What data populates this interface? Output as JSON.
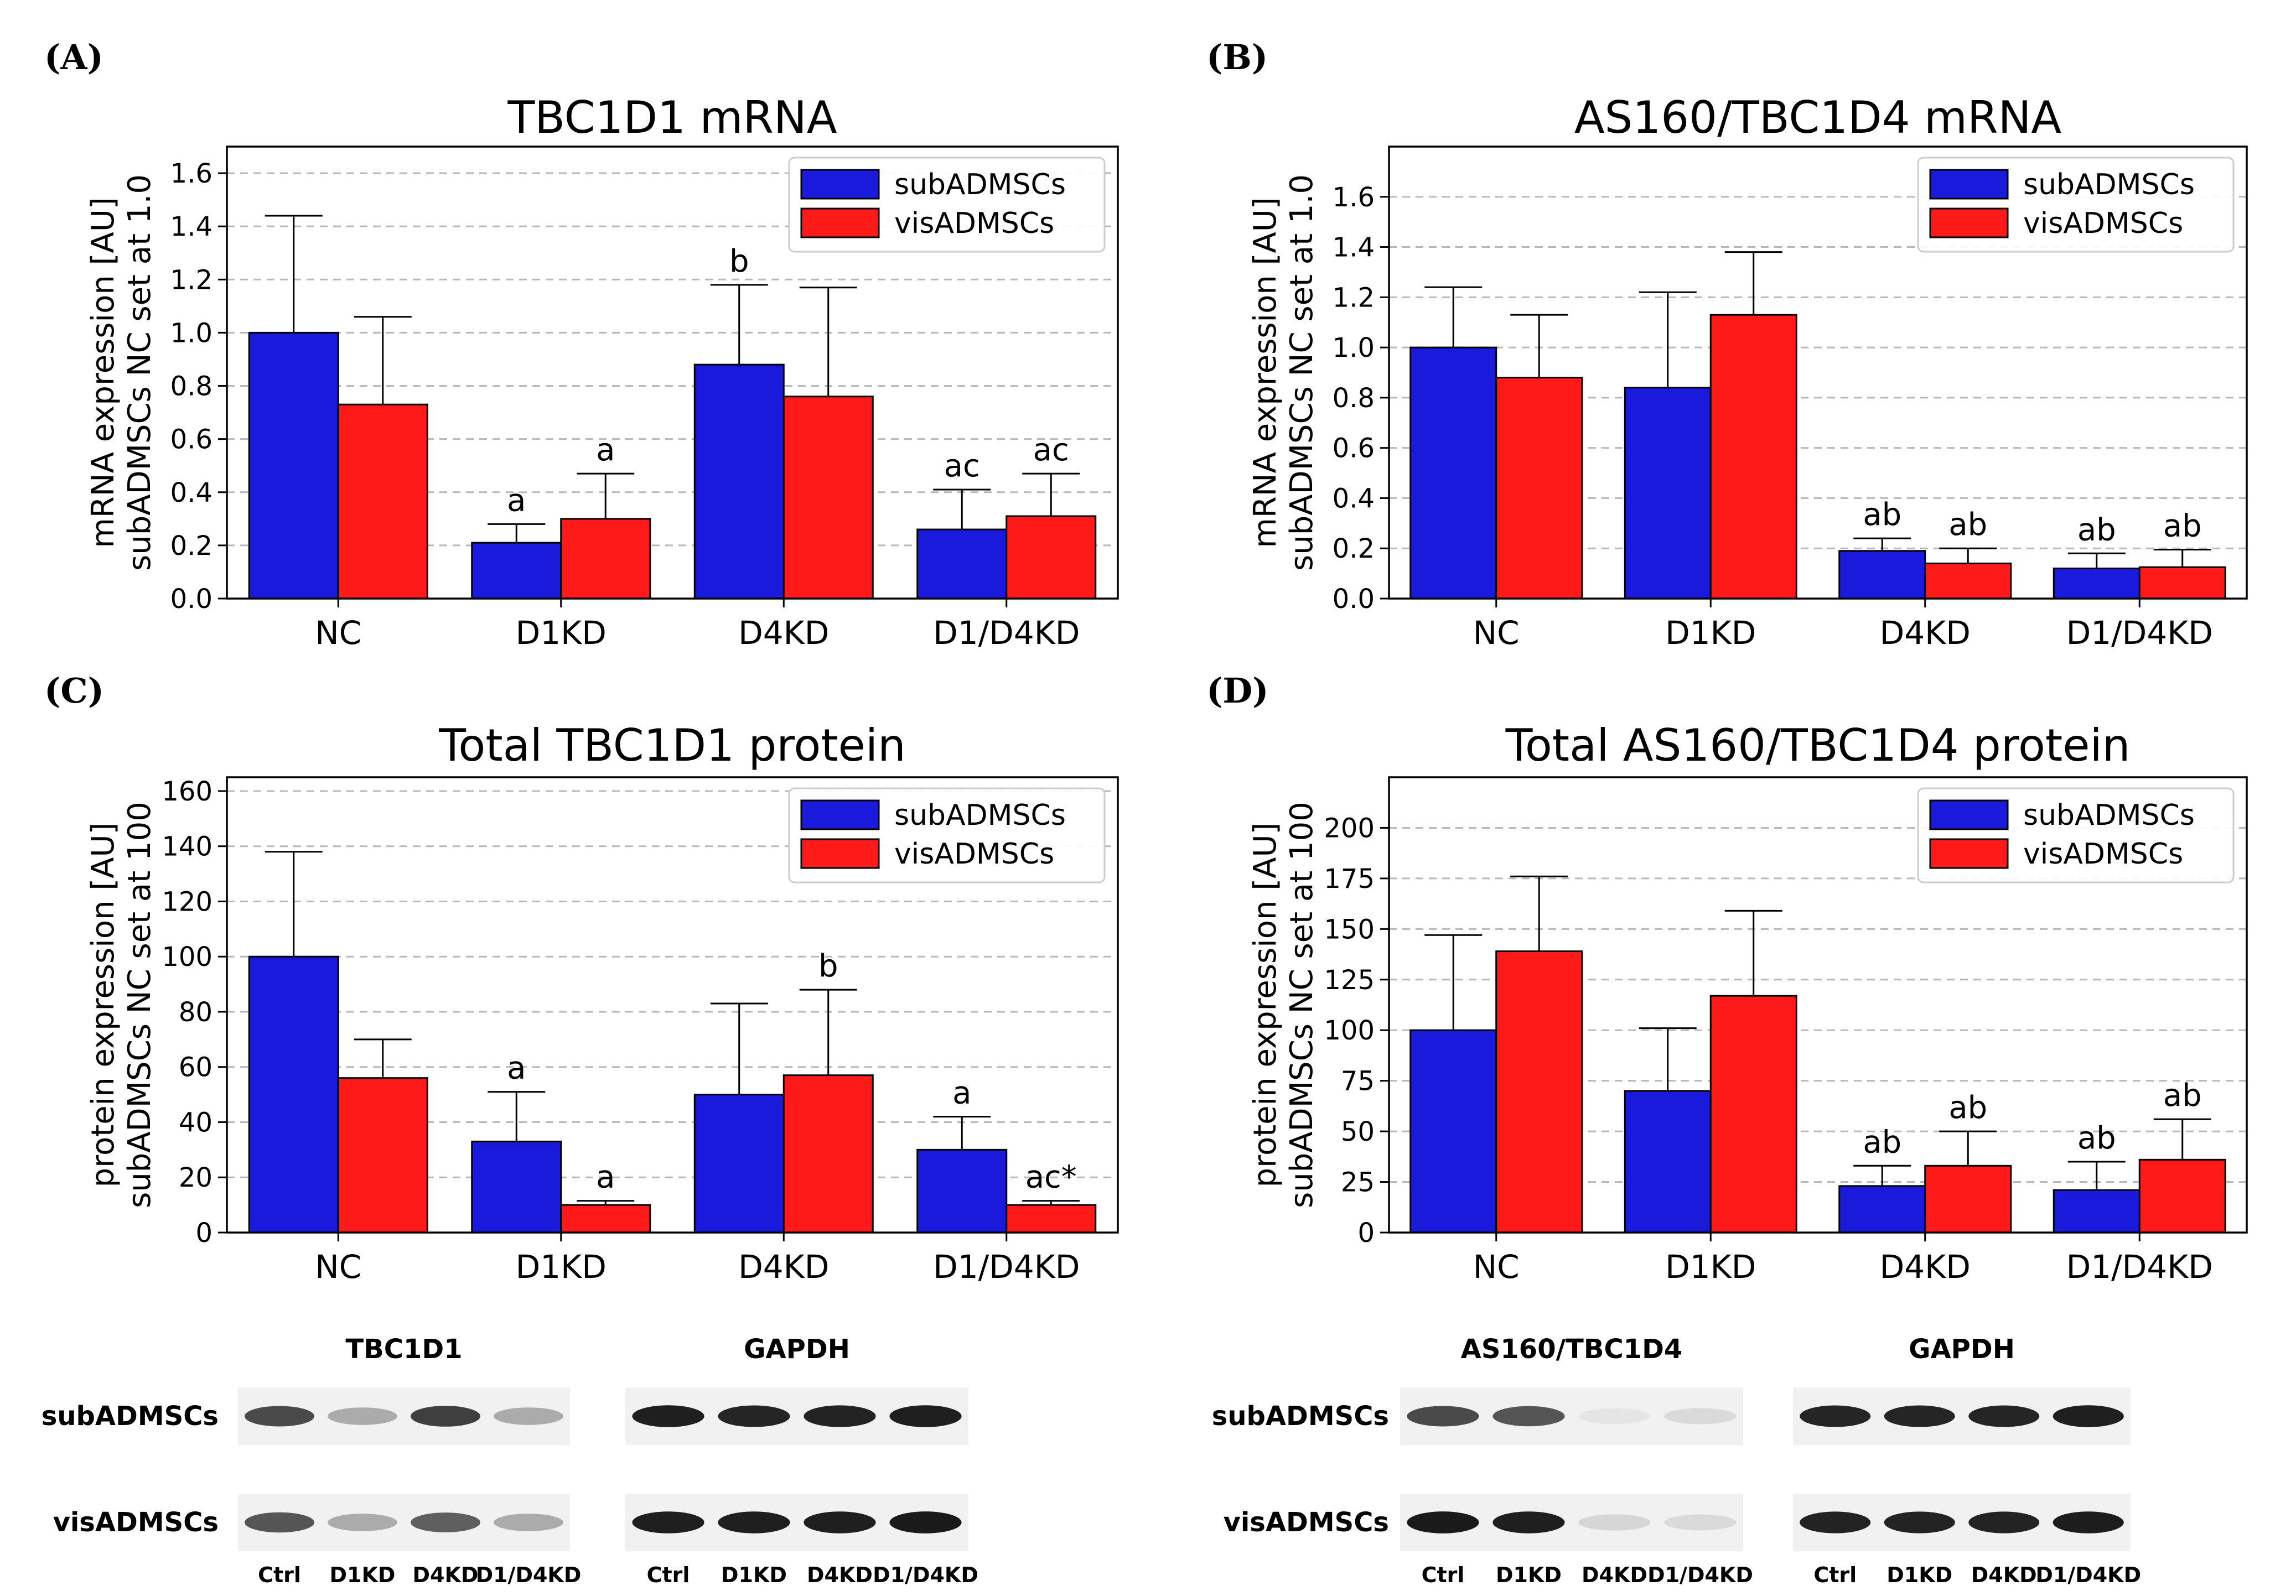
{
  "chart_data": [
    {
      "panel": "(A)",
      "type": "bar",
      "title": "TBC1D1 mRNA",
      "ylabel_lines": [
        "mRNA expression [AU]",
        "subADMSCs NC set at 1.0"
      ],
      "xlabel": "",
      "categories": [
        "NC",
        "D1KD",
        "D4KD",
        "D1/D4KD"
      ],
      "ylim": [
        0,
        1.7
      ],
      "yticks": [
        0.0,
        0.2,
        0.4,
        0.6,
        0.8,
        1.0,
        1.2,
        1.4,
        1.6
      ],
      "tick_decimals": 1,
      "grid": true,
      "legend_position": "top-right",
      "series": [
        {
          "name": "subADMSCs",
          "color": "#1a1adc",
          "values": [
            1.0,
            0.21,
            0.88,
            0.26
          ],
          "errors": [
            0.44,
            0.07,
            0.3,
            0.15
          ],
          "annotations": [
            "",
            "a",
            "b",
            "ac"
          ]
        },
        {
          "name": "visADMSCs",
          "color": "#ff1a1a",
          "values": [
            0.73,
            0.3,
            0.76,
            0.31
          ],
          "errors": [
            0.33,
            0.17,
            0.41,
            0.16
          ],
          "annotations": [
            "",
            "a",
            "",
            "ac"
          ]
        }
      ]
    },
    {
      "panel": "(B)",
      "type": "bar",
      "title": "AS160/TBC1D4 mRNA",
      "ylabel_lines": [
        "mRNA expression [AU]",
        "subADMSCs NC set at 1.0"
      ],
      "xlabel": "",
      "categories": [
        "NC",
        "D1KD",
        "D4KD",
        "D1/D4KD"
      ],
      "ylim": [
        0,
        1.8
      ],
      "yticks": [
        0.0,
        0.2,
        0.4,
        0.6,
        0.8,
        1.0,
        1.2,
        1.4,
        1.6
      ],
      "tick_decimals": 1,
      "grid": true,
      "legend_position": "top-right",
      "series": [
        {
          "name": "subADMSCs",
          "color": "#1a1adc",
          "values": [
            1.0,
            0.84,
            0.19,
            0.12
          ],
          "errors": [
            0.24,
            0.38,
            0.05,
            0.06
          ],
          "annotations": [
            "",
            "",
            "ab",
            "ab"
          ]
        },
        {
          "name": "visADMSCs",
          "color": "#ff1a1a",
          "values": [
            0.88,
            1.13,
            0.14,
            0.125
          ],
          "errors": [
            0.25,
            0.25,
            0.06,
            0.07
          ],
          "annotations": [
            "",
            "",
            "ab",
            "ab"
          ]
        }
      ]
    },
    {
      "panel": "(C)",
      "type": "bar",
      "title": "Total TBC1D1 protein",
      "ylabel_lines": [
        "protein expression [AU]",
        "subADMSCs NC set at 100"
      ],
      "xlabel": "",
      "categories": [
        "NC",
        "D1KD",
        "D4KD",
        "D1/D4KD"
      ],
      "ylim": [
        0,
        165
      ],
      "yticks": [
        0,
        20,
        40,
        60,
        80,
        100,
        120,
        140,
        160
      ],
      "tick_decimals": 0,
      "grid": true,
      "legend_position": "top-right",
      "series": [
        {
          "name": "subADMSCs",
          "color": "#1a1adc",
          "values": [
            100,
            33,
            50,
            30
          ],
          "errors": [
            38,
            18,
            33,
            12
          ],
          "annotations": [
            "",
            "a",
            "",
            "a"
          ]
        },
        {
          "name": "visADMSCs",
          "color": "#ff1a1a",
          "values": [
            56,
            10,
            57,
            10
          ],
          "errors": [
            14,
            1.5,
            31,
            1.5
          ],
          "annotations": [
            "",
            "a",
            "b",
            "ac*"
          ]
        }
      ]
    },
    {
      "panel": "(D)",
      "type": "bar",
      "title": "Total AS160/TBC1D4 protein",
      "ylabel_lines": [
        "protein expression [AU]",
        "subADMSCs NC set at 100"
      ],
      "xlabel": "",
      "categories": [
        "NC",
        "D1KD",
        "D4KD",
        "D1/D4KD"
      ],
      "ylim": [
        0,
        225
      ],
      "yticks": [
        0,
        25,
        50,
        75,
        100,
        125,
        150,
        175,
        200
      ],
      "tick_decimals": 0,
      "grid": true,
      "legend_position": "top-right",
      "series": [
        {
          "name": "subADMSCs",
          "color": "#1a1adc",
          "values": [
            100,
            70,
            23,
            21
          ],
          "errors": [
            47,
            31,
            10,
            14
          ],
          "annotations": [
            "",
            "",
            "ab",
            "ab"
          ]
        },
        {
          "name": "visADMSCs",
          "color": "#ff1a1a",
          "values": [
            139,
            117,
            33,
            36
          ],
          "errors": [
            37,
            42,
            17,
            20
          ],
          "annotations": [
            "",
            "",
            "ab",
            "ab"
          ]
        }
      ]
    }
  ],
  "blots": [
    {
      "panel": "C",
      "rows": [
        "subADMSCs",
        "visADMSCs"
      ],
      "groups": [
        {
          "label": "TBC1D1",
          "lanes": [
            "Ctrl",
            "D1KD",
            "D4KD",
            "D1/D4KD"
          ],
          "intensity": [
            [
              0.75,
              0.3,
              0.8,
              0.3
            ],
            [
              0.7,
              0.3,
              0.65,
              0.3
            ]
          ]
        },
        {
          "label": "GAPDH",
          "lanes": [
            "Ctrl",
            "D1KD",
            "D4KD",
            "D1/D4KD"
          ],
          "intensity": [
            [
              0.95,
              0.92,
              0.93,
              0.95
            ],
            [
              0.95,
              0.95,
              0.95,
              0.97
            ]
          ]
        }
      ]
    },
    {
      "panel": "D",
      "rows": [
        "subADMSCs",
        "visADMSCs"
      ],
      "groups": [
        {
          "label": "AS160/TBC1D4",
          "lanes": [
            "Ctrl",
            "D1KD",
            "D4KD",
            "D1/D4KD"
          ],
          "intensity": [
            [
              0.75,
              0.7,
              0.03,
              0.08
            ],
            [
              0.97,
              0.95,
              0.1,
              0.08
            ]
          ]
        },
        {
          "label": "GAPDH",
          "lanes": [
            "Ctrl",
            "D1KD",
            "D4KD",
            "D1/D4KD"
          ],
          "intensity": [
            [
              0.92,
              0.92,
              0.92,
              0.95
            ],
            [
              0.93,
              0.93,
              0.93,
              0.96
            ]
          ]
        }
      ]
    }
  ]
}
